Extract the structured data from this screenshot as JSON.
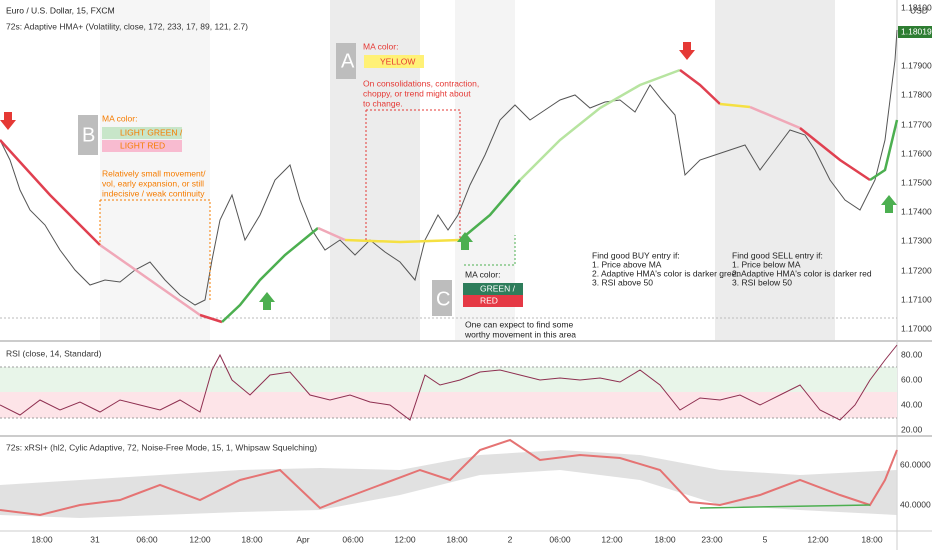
{
  "header": {
    "symbol": "Euro / U.S. Dollar, 15, FXCM",
    "indicator": "72s: Adaptive HMA+ (Volatility, close, 172, 233, 17, 89, 121, 2.7)",
    "currency": "USD"
  },
  "price_axis": {
    "labels": [
      "1.18100",
      "1.17900",
      "1.17800",
      "1.17700",
      "1.17600",
      "1.17500",
      "1.17400",
      "1.17300",
      "1.17200",
      "1.17100",
      "1.17000"
    ],
    "last": "1.18019"
  },
  "annotations": {
    "a": {
      "letter": "A",
      "title": "MA color:",
      "badge": "YELLOW",
      "lines": [
        "On consolidations, contraction,",
        "choppy, or trend might about",
        "to change."
      ]
    },
    "b": {
      "letter": "B",
      "title": "MA color:",
      "badges": [
        "LIGHT GREEN /",
        "LIGHT RED"
      ],
      "lines": [
        "Relatively small movement/",
        "vol, early expansion, or still",
        "indecisive / weak continuity"
      ]
    },
    "c": {
      "letter": "C",
      "title": "MA color:",
      "badges": [
        "GREEN /",
        "RED"
      ],
      "lines": [
        "One can expect to find some",
        "worthy movement in this area"
      ]
    },
    "buy": {
      "lines": [
        "Find good BUY entry if:",
        "1. Price above MA",
        "2. Adaptive HMA's color is darker green",
        "3. RSI above 50"
      ]
    },
    "sell": {
      "lines": [
        "Find good SELL entry if:",
        "1. Price below MA",
        "2. Adaptive HMA's color is darker red",
        "3. RSI below 50"
      ]
    }
  },
  "rsi": {
    "title": "RSI (close, 14, Standard)",
    "labels": [
      "80.00",
      "60.00",
      "40.00",
      "20.00"
    ]
  },
  "xrsi": {
    "title": "72s: xRSI+ (hl2, Cylic Adaptive, 72, Noise-Free Mode, 15, 1, Whipsaw Squelching)",
    "labels": [
      "60.0000",
      "40.0000"
    ]
  },
  "time_axis": [
    "18:00",
    "31",
    "06:00",
    "12:00",
    "18:00",
    "Apr",
    "06:00",
    "12:00",
    "18:00",
    "2",
    "06:00",
    "12:00",
    "18:00",
    "23:00",
    "5",
    "12:00",
    "18:00"
  ]
}
